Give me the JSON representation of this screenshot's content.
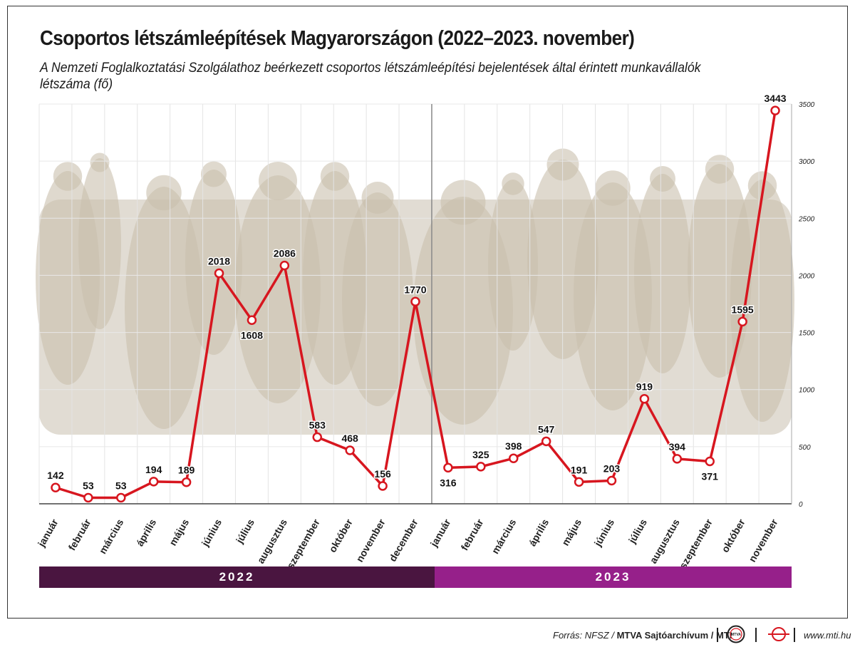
{
  "title": "Csoportos létszámleépítések Magyarországon (2022–2023. november)",
  "subtitle": "A Nemzeti Foglalkoztatási Szolgálathoz beérkezett csoportos létszámleépítési bejelentések által érintett munkavállalók létszáma (fő)",
  "years": {
    "y2022": "2022",
    "y2023": "2023"
  },
  "colors": {
    "line": "#d7161f",
    "bar2022": "#4a1540",
    "bar2023": "#96208a",
    "photo": "#c9bfae"
  },
  "footer": {
    "source_prefix": "Forrás: NFSZ / ",
    "source_bold": "MTVA Sajtóarchívum / MTI",
    "logo1": "MTVA",
    "url": "www.mti.hu"
  },
  "chart_data": {
    "type": "line",
    "x": [
      "január",
      "február",
      "március",
      "április",
      "május",
      "június",
      "július",
      "augusztus",
      "szeptember",
      "október",
      "november",
      "december",
      "január",
      "február",
      "március",
      "április",
      "május",
      "június",
      "július",
      "augusztus",
      "szeptember",
      "október",
      "november"
    ],
    "values": [
      142,
      53,
      53,
      194,
      189,
      2018,
      1608,
      2086,
      583,
      468,
      156,
      1770,
      316,
      325,
      398,
      547,
      191,
      203,
      919,
      394,
      371,
      1595,
      3443
    ],
    "data_labels": [
      "142",
      "53",
      "53",
      "194",
      "189",
      "2018",
      "1608",
      "2086",
      "583",
      "468",
      "156",
      "1770",
      "316",
      "325",
      "398",
      "547",
      "191",
      "203",
      "919",
      "394",
      "371",
      "1595",
      "3443"
    ],
    "yticks": [
      0,
      500,
      1000,
      1500,
      2000,
      2500,
      3000,
      3500
    ],
    "ytick_labels": [
      "0",
      "500",
      "1000",
      "1500",
      "2000",
      "2500",
      "3000",
      "3500"
    ],
    "ylim": [
      0,
      3500
    ],
    "grid": true,
    "groups": [
      "2022",
      "2023"
    ]
  }
}
